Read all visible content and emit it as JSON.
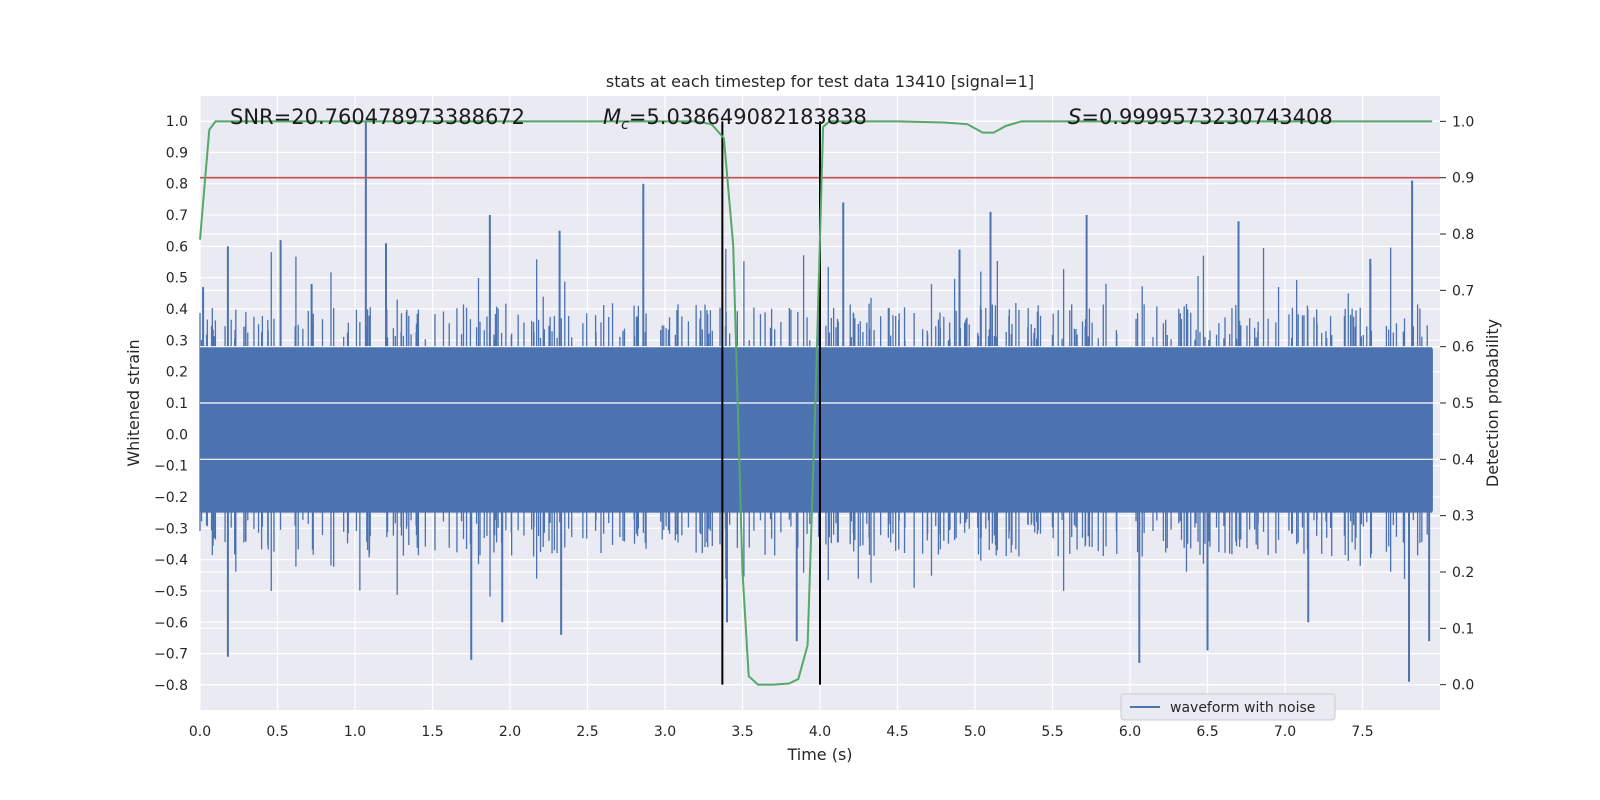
{
  "chart_data": {
    "type": "line",
    "title": "stats at each timestep for test data 13410 [signal=1]",
    "xlabel": "Time (s)",
    "ylabel": "Whitened strain",
    "y2label": "Detection probability",
    "xlim": [
      0.0,
      8.0
    ],
    "ylim": [
      -0.88,
      1.08
    ],
    "y2lim": [
      -0.045,
      1.045
    ],
    "x_ticks": [
      "0.0",
      "0.5",
      "1.0",
      "1.5",
      "2.0",
      "2.5",
      "3.0",
      "3.5",
      "4.0",
      "4.5",
      "5.0",
      "5.5",
      "6.0",
      "6.5",
      "7.0",
      "7.5"
    ],
    "y_ticks": [
      "-0.8",
      "-0.7",
      "-0.6",
      "-0.5",
      "-0.4",
      "-0.3",
      "-0.2",
      "-0.1",
      "0.0",
      "0.1",
      "0.2",
      "0.3",
      "0.4",
      "0.5",
      "0.6",
      "0.7",
      "0.8",
      "0.9",
      "1.0"
    ],
    "y2_ticks": [
      "0.0",
      "0.1",
      "0.2",
      "0.3",
      "0.4",
      "0.5",
      "0.6",
      "0.7",
      "0.8",
      "0.9",
      "1.0"
    ],
    "grid": true,
    "legend_position": "lower-right",
    "annotations": {
      "snr": "SNR=20.760478973388672",
      "mc_symbol": "M",
      "mc_sub": "c",
      "mc_value": "=5.038649082183838",
      "s_symbol": "S",
      "s_value": "=0.9999573230743408"
    },
    "series": [
      {
        "name": "waveform with noise",
        "axis": "left",
        "color": "#4c72b0",
        "core_range": [
          -0.25,
          0.28
        ],
        "peaks_positive": [
          {
            "x": 0.02,
            "y": 0.47
          },
          {
            "x": 0.18,
            "y": 0.6
          },
          {
            "x": 0.52,
            "y": 0.62
          },
          {
            "x": 0.72,
            "y": 0.48
          },
          {
            "x": 1.07,
            "y": 1.0
          },
          {
            "x": 1.2,
            "y": 0.61
          },
          {
            "x": 1.87,
            "y": 0.7
          },
          {
            "x": 2.32,
            "y": 0.65
          },
          {
            "x": 2.86,
            "y": 0.8
          },
          {
            "x": 4.15,
            "y": 0.74
          },
          {
            "x": 4.9,
            "y": 0.59
          },
          {
            "x": 5.1,
            "y": 0.71
          },
          {
            "x": 5.72,
            "y": 0.7
          },
          {
            "x": 6.7,
            "y": 0.68
          },
          {
            "x": 7.55,
            "y": 0.56
          },
          {
            "x": 7.82,
            "y": 0.81
          }
        ],
        "peaks_negative": [
          {
            "x": 0.18,
            "y": -0.71
          },
          {
            "x": 1.75,
            "y": -0.72
          },
          {
            "x": 1.95,
            "y": -0.6
          },
          {
            "x": 2.33,
            "y": -0.64
          },
          {
            "x": 3.4,
            "y": -0.6
          },
          {
            "x": 3.85,
            "y": -0.66
          },
          {
            "x": 6.06,
            "y": -0.73
          },
          {
            "x": 6.5,
            "y": -0.69
          },
          {
            "x": 7.15,
            "y": -0.6
          },
          {
            "x": 7.8,
            "y": -0.79
          },
          {
            "x": 7.93,
            "y": -0.66
          }
        ]
      },
      {
        "name": "",
        "axis": "right",
        "color": "#55a868",
        "x": [
          0.0,
          0.06,
          0.1,
          0.15,
          0.5,
          1.0,
          1.5,
          2.0,
          2.5,
          3.0,
          3.2,
          3.3,
          3.38,
          3.44,
          3.5,
          3.54,
          3.6,
          3.7,
          3.8,
          3.86,
          3.92,
          3.97,
          4.02,
          4.06,
          4.1,
          4.5,
          4.8,
          4.95,
          5.05,
          5.12,
          5.2,
          5.3,
          5.5,
          6.0,
          7.0,
          7.95
        ],
        "y": [
          0.79,
          0.985,
          1.0,
          1.0,
          1.0,
          1.0,
          1.0,
          1.0,
          1.0,
          1.0,
          1.0,
          0.995,
          0.97,
          0.78,
          0.2,
          0.015,
          0.0,
          0.0,
          0.002,
          0.01,
          0.07,
          0.5,
          0.99,
          1.0,
          1.0,
          1.0,
          0.998,
          0.995,
          0.98,
          0.98,
          0.992,
          1.0,
          1.0,
          1.0,
          1.0,
          1.0
        ]
      }
    ],
    "threshold_line": {
      "axis": "right",
      "value": 0.9,
      "color": "#c44e52"
    },
    "event_markers": {
      "x": [
        3.37,
        4.0
      ],
      "color": "#000000"
    }
  }
}
